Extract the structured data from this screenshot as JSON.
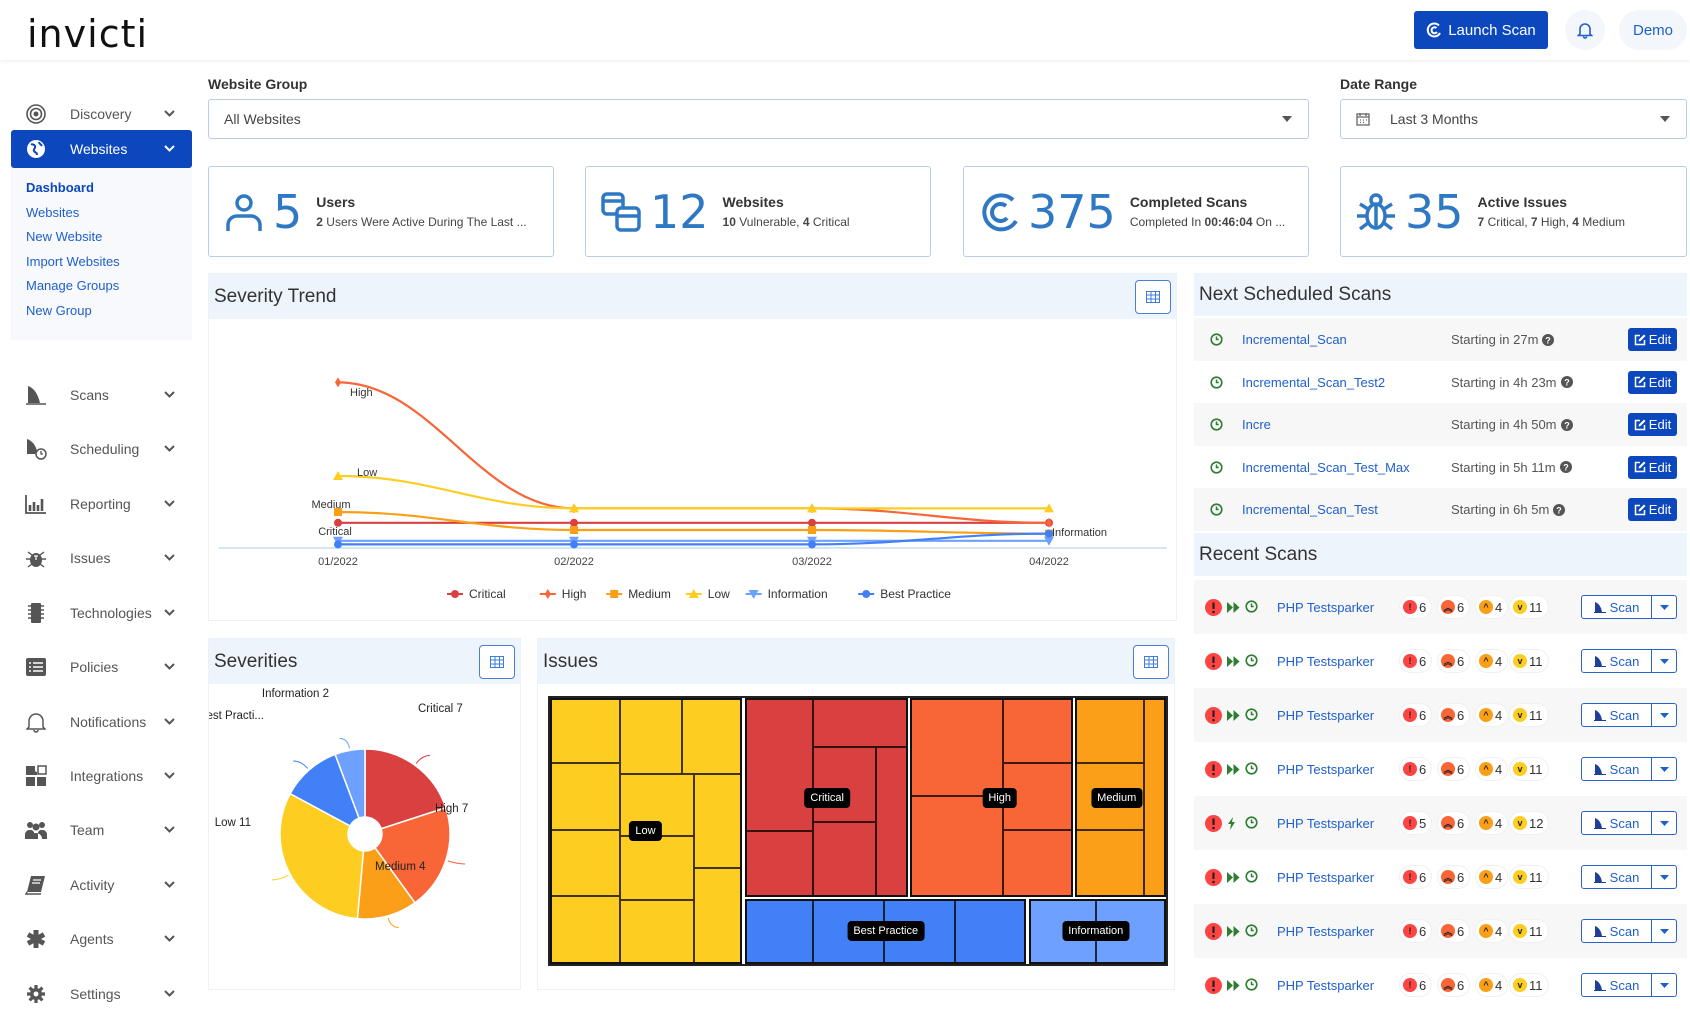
{
  "header": {
    "logo": "invicti",
    "launch_scan": "Launch Scan",
    "user": "Demo"
  },
  "sidebar": {
    "items": [
      {
        "label": "Discovery",
        "icon": "discovery-icon"
      },
      {
        "label": "Websites",
        "icon": "globe-icon",
        "active": true
      },
      {
        "label": "Scans",
        "icon": "shark-fin-icon"
      },
      {
        "label": "Scheduling",
        "icon": "scheduling-icon"
      },
      {
        "label": "Reporting",
        "icon": "bar-chart-icon"
      },
      {
        "label": "Issues",
        "icon": "bug-icon"
      },
      {
        "label": "Technologies",
        "icon": "chip-icon"
      },
      {
        "label": "Policies",
        "icon": "list-icon"
      },
      {
        "label": "Notifications",
        "icon": "bell-icon"
      },
      {
        "label": "Integrations",
        "icon": "puzzle-icon"
      },
      {
        "label": "Team",
        "icon": "team-icon"
      },
      {
        "label": "Activity",
        "icon": "book-icon"
      },
      {
        "label": "Agents",
        "icon": "asterisk-icon"
      },
      {
        "label": "Settings",
        "icon": "gear-icon"
      }
    ],
    "websites_sub": [
      "Dashboard",
      "Websites",
      "New Website",
      "Import Websites",
      "Manage Groups",
      "New Group"
    ]
  },
  "filters": {
    "website_group": {
      "label": "Website Group",
      "value": "All Websites"
    },
    "date_range": {
      "label": "Date Range",
      "value": "Last 3 Months"
    }
  },
  "cards": [
    {
      "number": "5",
      "title": "Users",
      "desc_bold": "2",
      "desc": " Users Were Active During The Last ..."
    },
    {
      "number": "12",
      "title": "Websites",
      "desc_parts": [
        "10",
        " Vulnerable, ",
        "4",
        " Critical"
      ]
    },
    {
      "number": "375",
      "title": "Completed Scans",
      "desc_parts": [
        "Completed In ",
        "00:46:04",
        " On ..."
      ]
    },
    {
      "number": "35",
      "title": "Active Issues",
      "desc_parts": [
        "7",
        " Critical, ",
        "7",
        " High, ",
        "4",
        " Medium"
      ]
    }
  ],
  "panels": {
    "severity_trend": "Severity Trend",
    "next_scheduled": "Next Scheduled Scans",
    "recent_scans": "Recent Scans",
    "severities": "Severities",
    "issues": "Issues"
  },
  "colors": {
    "primary": "#0c47bd",
    "critical": "#d94040",
    "high": "#f86537",
    "medium": "#fb9f18",
    "low": "#fdcd22",
    "information": "#6ea1ff",
    "best_practice": "#4180f7"
  },
  "chart_data": [
    {
      "type": "line",
      "title": "Severity Trend",
      "categories": [
        "01/2022",
        "02/2022",
        "03/2022",
        "04/2022"
      ],
      "series": [
        {
          "name": "Critical",
          "values": [
            7,
            7,
            7,
            7
          ]
        },
        {
          "name": "High",
          "values": [
            46,
            11,
            11,
            7
          ]
        },
        {
          "name": "Medium",
          "values": [
            10,
            5,
            5,
            4
          ]
        },
        {
          "name": "Low",
          "values": [
            20,
            11,
            11,
            11
          ]
        },
        {
          "name": "Information",
          "values": [
            2,
            2,
            2,
            2
          ]
        },
        {
          "name": "Best Practice",
          "values": [
            1,
            1,
            1,
            4
          ]
        }
      ],
      "point_labels": {
        "first": [
          "High",
          "Low",
          "Medium",
          "Critical"
        ],
        "last": [
          "Information"
        ]
      },
      "ylim": [
        0,
        50
      ],
      "grid": false,
      "legend": "bottom"
    },
    {
      "type": "pie",
      "title": "Severities",
      "slices": [
        {
          "name": "Critical",
          "value": 7,
          "label": "Critical 7"
        },
        {
          "name": "High",
          "value": 7,
          "label": "High 7"
        },
        {
          "name": "Medium",
          "value": 4,
          "label": "Medium 4"
        },
        {
          "name": "Low",
          "value": 11,
          "label": "Low 11"
        },
        {
          "name": "Best Practice",
          "value": 4,
          "label": "Best Practi..."
        },
        {
          "name": "Information",
          "value": 2,
          "label": "Information 2"
        }
      ]
    },
    {
      "type": "treemap",
      "title": "Issues",
      "groups": [
        "Low",
        "Critical",
        "High",
        "Medium",
        "Best Practice",
        "Information"
      ]
    }
  ],
  "scheduled": [
    {
      "name": "Incremental_Scan",
      "start": "Starting in 27m"
    },
    {
      "name": "Incremental_Scan_Test2",
      "start": "Starting in 4h 23m"
    },
    {
      "name": "Incre",
      "start": "Starting in 4h 50m"
    },
    {
      "name": "Incremental_Scan_Test_Max",
      "start": "Starting in 5h 11m"
    },
    {
      "name": "Incremental_Scan_Test",
      "start": "Starting in 6h 5m"
    }
  ],
  "edit_label": "Edit",
  "scan_label": "Scan",
  "recent": [
    {
      "name": "PHP Testsparker",
      "mode": "fast-forward-icon",
      "critical": "6",
      "high": "6",
      "medium": "4",
      "low": "11"
    },
    {
      "name": "PHP Testsparker",
      "mode": "fast-forward-icon",
      "critical": "6",
      "high": "6",
      "medium": "4",
      "low": "11"
    },
    {
      "name": "PHP Testsparker",
      "mode": "fast-forward-icon",
      "critical": "6",
      "high": "6",
      "medium": "4",
      "low": "11"
    },
    {
      "name": "PHP Testsparker",
      "mode": "fast-forward-icon",
      "critical": "6",
      "high": "6",
      "medium": "4",
      "low": "11"
    },
    {
      "name": "PHP Testsparker",
      "mode": "bolt-icon",
      "critical": "5",
      "high": "6",
      "medium": "4",
      "low": "12"
    },
    {
      "name": "PHP Testsparker",
      "mode": "fast-forward-icon",
      "critical": "6",
      "high": "6",
      "medium": "4",
      "low": "11"
    },
    {
      "name": "PHP Testsparker",
      "mode": "fast-forward-icon",
      "critical": "6",
      "high": "6",
      "medium": "4",
      "low": "11"
    },
    {
      "name": "PHP Testsparker",
      "mode": "fast-forward-icon",
      "critical": "6",
      "high": "6",
      "medium": "4",
      "low": "11"
    }
  ]
}
